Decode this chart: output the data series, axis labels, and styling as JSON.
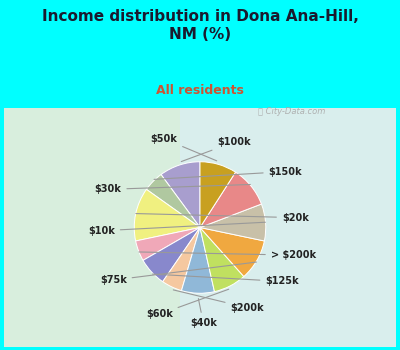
{
  "title": "Income distribution in Dona Ana-Hill,\nNM (%)",
  "subtitle": "All residents",
  "title_fontsize": 11,
  "subtitle_fontsize": 9,
  "background_color": "#00FFFF",
  "chart_bg_left": "#e8f5e9",
  "chart_bg_right": "#e0f0f8",
  "slices": [
    {
      "label": "$100k",
      "value": 10,
      "color": "#a89ece"
    },
    {
      "label": "$150k",
      "value": 5,
      "color": "#b0c8a0"
    },
    {
      "label": "$20k",
      "value": 13,
      "color": "#f0f080"
    },
    {
      "label": "> $200k",
      "value": 5,
      "color": "#f0a8b8"
    },
    {
      "label": "$125k",
      "value": 7,
      "color": "#8888cc"
    },
    {
      "label": "$200k",
      "value": 5,
      "color": "#f5c8a0"
    },
    {
      "label": "$40k",
      "value": 8,
      "color": "#90b8d8"
    },
    {
      "label": "$60k",
      "value": 8,
      "color": "#c0e060"
    },
    {
      "label": "$75k",
      "value": 10,
      "color": "#f0a840"
    },
    {
      "label": "$10k",
      "value": 9,
      "color": "#c8c0a8"
    },
    {
      "label": "$30k",
      "value": 10,
      "color": "#e88888"
    },
    {
      "label": "$50k",
      "value": 9,
      "color": "#c8a020"
    }
  ],
  "watermark": "City-Data.com"
}
